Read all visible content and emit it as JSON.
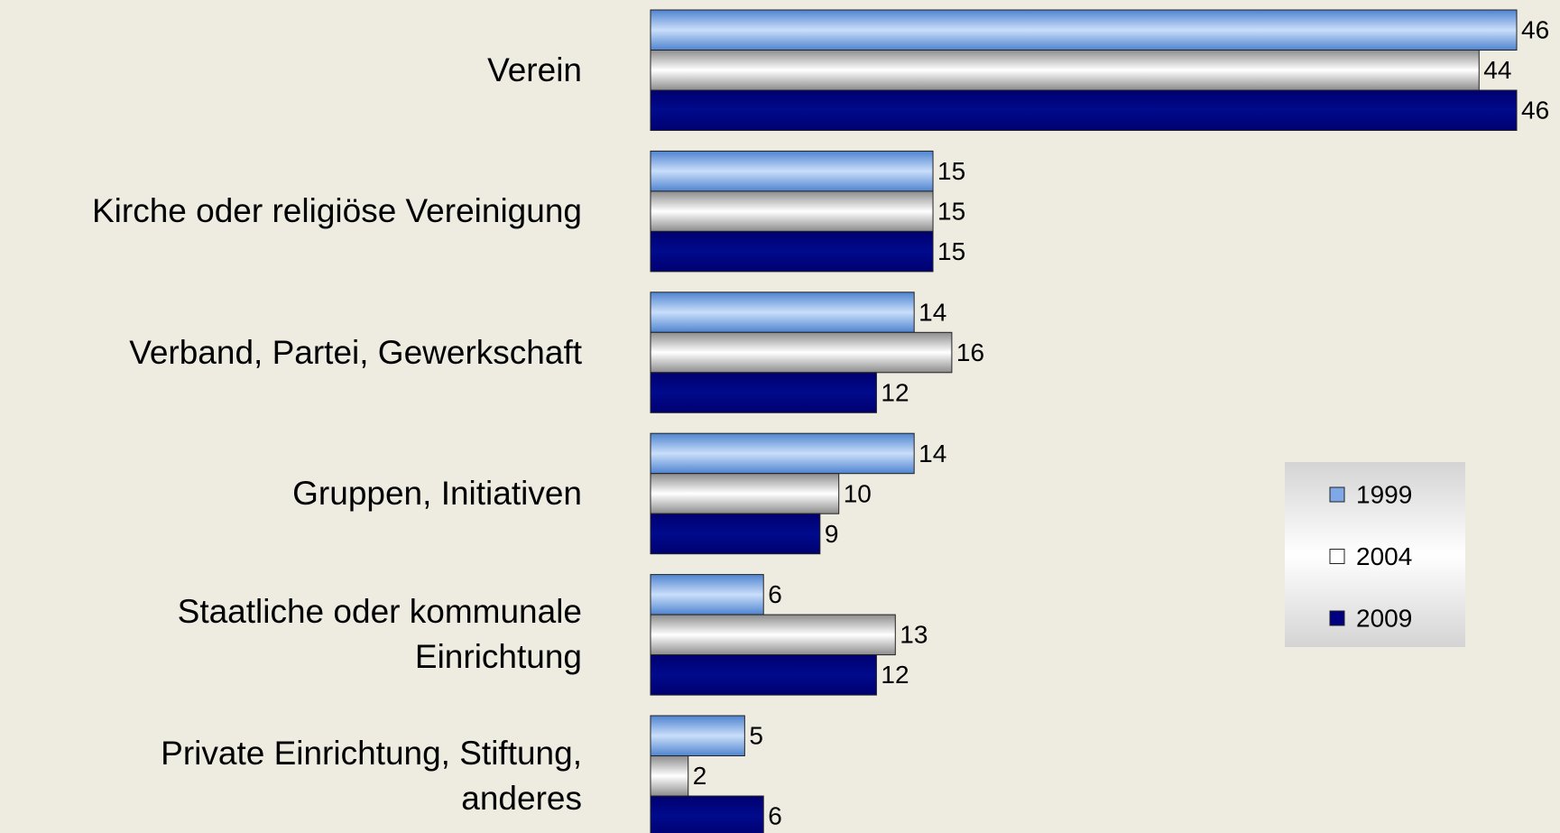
{
  "chart_data": {
    "type": "bar",
    "orientation": "horizontal",
    "categories": [
      "Verein",
      "Kirche oder religiöse Vereinigung",
      "Verband, Partei, Gewerkschaft",
      "Gruppen, Initiativen",
      "Staatliche oder kommunale\nEinrichtung",
      "Private Einrichtung, Stiftung,\nanderes"
    ],
    "series": [
      {
        "name": "1999",
        "color": "#7fa8e6",
        "values": [
          46,
          15,
          14,
          14,
          6,
          5
        ]
      },
      {
        "name": "2004",
        "color": "#e6e6e6",
        "values": [
          44,
          15,
          16,
          10,
          13,
          2
        ]
      },
      {
        "name": "2009",
        "color": "#000080",
        "values": [
          46,
          15,
          12,
          9,
          12,
          6
        ]
      }
    ],
    "xlim": [
      0,
      46
    ],
    "legend": "right"
  }
}
